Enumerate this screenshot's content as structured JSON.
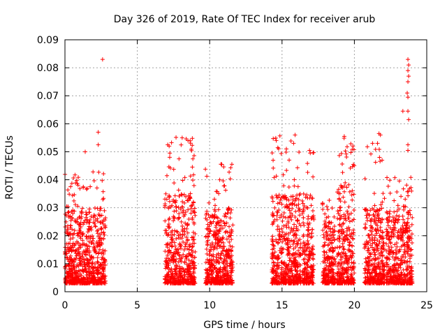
{
  "chart_data": {
    "type": "scatter",
    "title": "Day 326 of 2019, Rate Of TEC Index for receiver arub",
    "xlabel": "GPS time / hours",
    "ylabel": "ROTI / TECUs",
    "xlim": [
      0,
      25
    ],
    "ylim": [
      0,
      0.09
    ],
    "xticks": [
      0,
      5,
      10,
      15,
      20,
      25
    ],
    "yticks": [
      0,
      0.01,
      0.02,
      0.03,
      0.04,
      0.05,
      0.06,
      0.07,
      0.08,
      0.09
    ],
    "xtick_labels": [
      "0",
      "5",
      "10",
      "15",
      "20",
      "25"
    ],
    "ytick_labels": [
      "0",
      "0.01",
      "0.02",
      "0.03",
      "0.04",
      "0.05",
      "0.06",
      "0.07",
      "0.08",
      "0.09"
    ],
    "grid": true,
    "marker": "+",
    "color": "#ff0000",
    "clusters": [
      {
        "x_range": [
          0.0,
          2.8
        ],
        "typical_max": 0.03,
        "peak": 0.044
      },
      {
        "x_range": [
          6.9,
          9.0
        ],
        "typical_max": 0.035,
        "peak": 0.056
      },
      {
        "x_range": [
          9.7,
          11.6
        ],
        "typical_max": 0.03,
        "peak": 0.046
      },
      {
        "x_range": [
          14.3,
          16.3
        ],
        "typical_max": 0.035,
        "peak": 0.056
      },
      {
        "x_range": [
          16.4,
          17.2
        ],
        "typical_max": 0.035,
        "peak": 0.051
      },
      {
        "x_range": [
          17.8,
          18.7
        ],
        "typical_max": 0.025,
        "peak": 0.033
      },
      {
        "x_range": [
          18.8,
          20.0
        ],
        "typical_max": 0.04,
        "peak": 0.056
      },
      {
        "x_range": [
          20.7,
          22.1
        ],
        "typical_max": 0.03,
        "peak": 0.057
      },
      {
        "x_range": [
          22.2,
          24.0
        ],
        "typical_max": 0.03,
        "peak": 0.042
      }
    ],
    "outliers": [
      {
        "x": 2.6,
        "y": 0.083
      },
      {
        "x": 2.3,
        "y": 0.057
      },
      {
        "x": 2.3,
        "y": 0.0525
      },
      {
        "x": 1.4,
        "y": 0.05
      },
      {
        "x": 7.1,
        "y": 0.0525
      },
      {
        "x": 7.2,
        "y": 0.052
      },
      {
        "x": 8.1,
        "y": 0.055
      },
      {
        "x": 8.5,
        "y": 0.054
      },
      {
        "x": 14.6,
        "y": 0.054
      },
      {
        "x": 15.3,
        "y": 0.051
      },
      {
        "x": 15.9,
        "y": 0.056
      },
      {
        "x": 15.8,
        "y": 0.053
      },
      {
        "x": 16.9,
        "y": 0.0505
      },
      {
        "x": 19.3,
        "y": 0.0555
      },
      {
        "x": 19.9,
        "y": 0.052
      },
      {
        "x": 21.7,
        "y": 0.0565
      },
      {
        "x": 21.8,
        "y": 0.056
      },
      {
        "x": 21.6,
        "y": 0.053
      },
      {
        "x": 23.7,
        "y": 0.083
      },
      {
        "x": 23.75,
        "y": 0.081
      },
      {
        "x": 23.7,
        "y": 0.079
      },
      {
        "x": 23.75,
        "y": 0.077
      },
      {
        "x": 23.7,
        "y": 0.075
      },
      {
        "x": 23.65,
        "y": 0.071
      },
      {
        "x": 23.7,
        "y": 0.0695
      },
      {
        "x": 23.7,
        "y": 0.0645
      },
      {
        "x": 23.35,
        "y": 0.0645
      },
      {
        "x": 23.75,
        "y": 0.0615
      },
      {
        "x": 23.7,
        "y": 0.0525
      },
      {
        "x": 23.7,
        "y": 0.0505
      }
    ]
  }
}
